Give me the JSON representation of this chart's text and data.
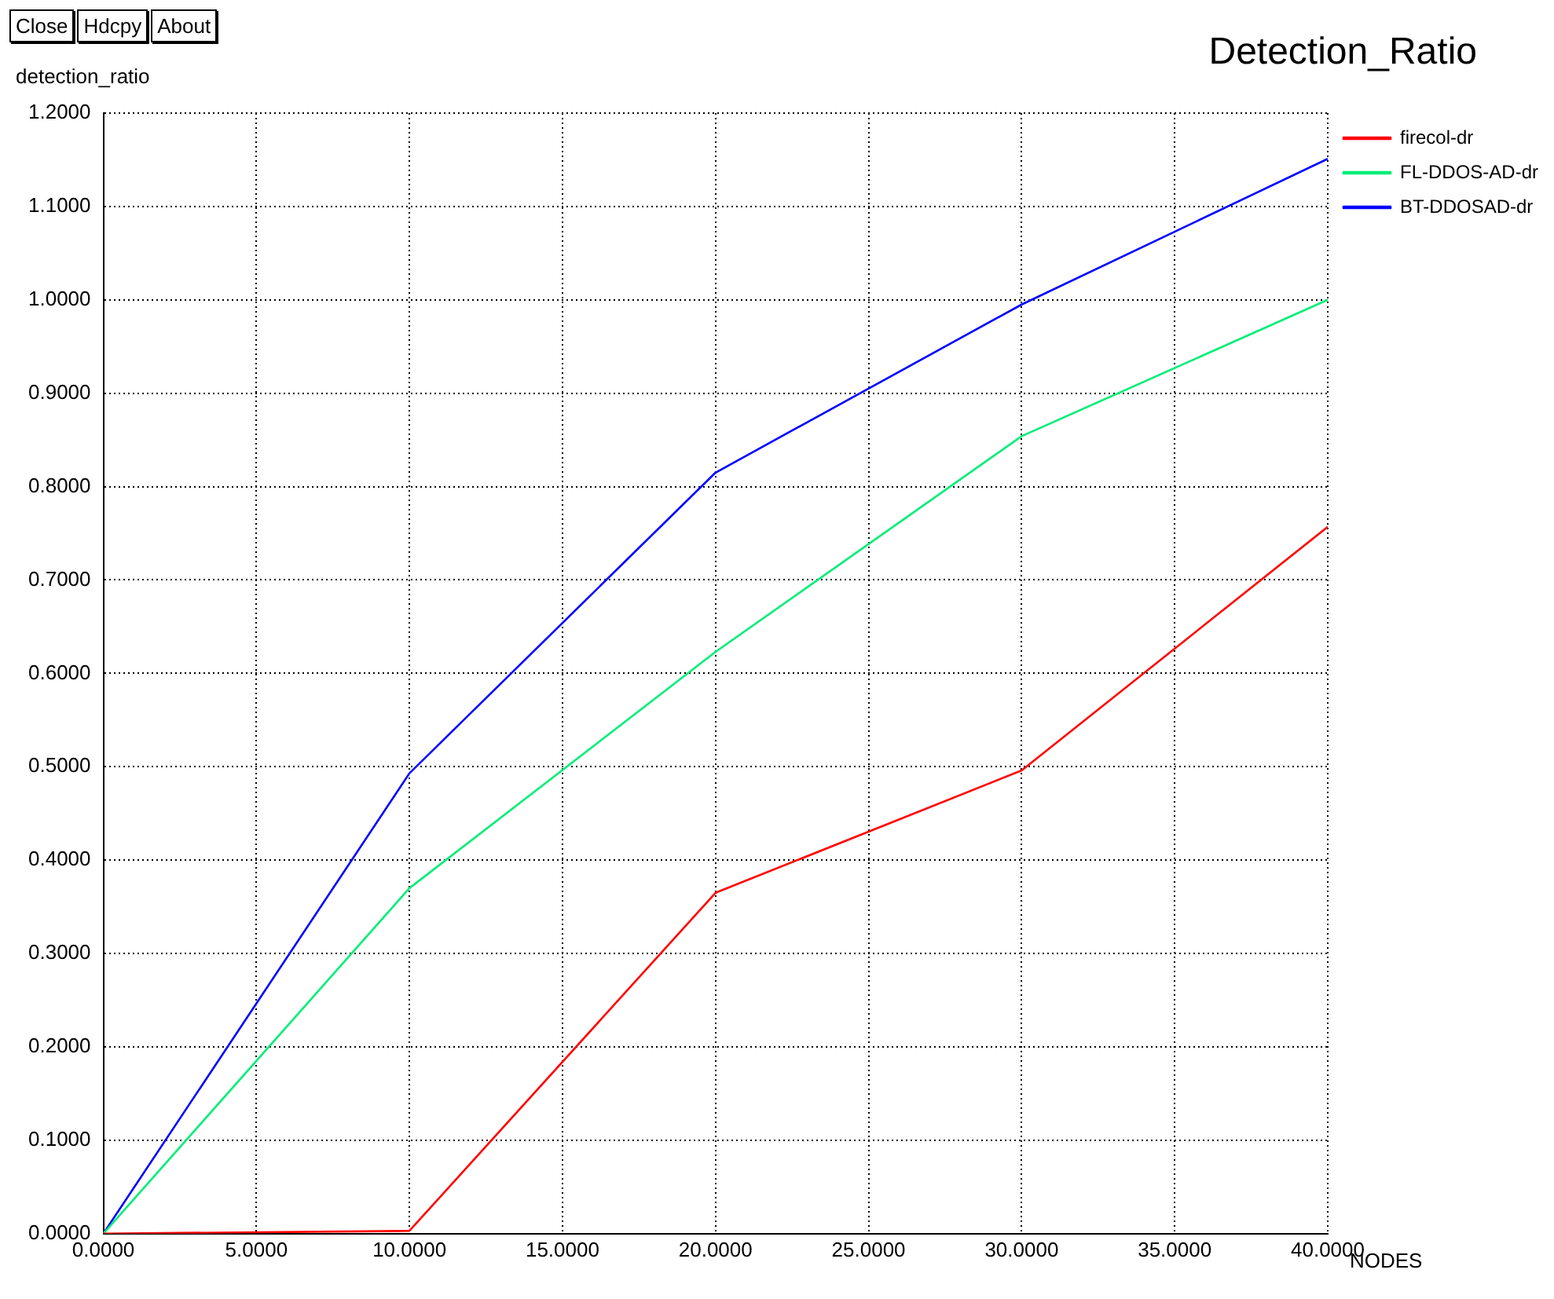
{
  "chart_data": {
    "type": "line",
    "title": "Detection_Ratio",
    "xlabel": "NODES",
    "ylabel": "detection_ratio",
    "annotations": [
      "Close",
      "Hdcpy",
      "About"
    ],
    "x": [
      0,
      10,
      20,
      30,
      40
    ],
    "series": [
      {
        "name": "firecol-dr",
        "color": "#ff0000",
        "values": [
          0,
          0.003,
          0.365,
          0.496,
          0.757
        ]
      },
      {
        "name": "FL-DDOS-AD-dr",
        "color": "#00ee77",
        "values": [
          0,
          0.37,
          0.623,
          0.854,
          1.0
        ]
      },
      {
        "name": "BT-DDOSAD-dr",
        "color": "#0000ff",
        "values": [
          0,
          0.493,
          0.815,
          0.995,
          1.151
        ]
      }
    ],
    "xlim": [
      0,
      40
    ],
    "xticks": [
      {
        "value": 0,
        "label": "0.0000"
      },
      {
        "value": 5,
        "label": "5.0000"
      },
      {
        "value": 10,
        "label": "10.0000"
      },
      {
        "value": 15,
        "label": "15.0000"
      },
      {
        "value": 20,
        "label": "20.0000"
      },
      {
        "value": 25,
        "label": "25.0000"
      },
      {
        "value": 30,
        "label": "30.0000"
      },
      {
        "value": 35,
        "label": "35.0000"
      },
      {
        "value": 40,
        "label": "40.0000"
      }
    ],
    "ylim": [
      0,
      1.2
    ],
    "yticks": [
      {
        "value": 0,
        "label": "0.0000"
      },
      {
        "value": 0.1,
        "label": "0.1000"
      },
      {
        "value": 0.2,
        "label": "0.2000"
      },
      {
        "value": 0.3,
        "label": "0.3000"
      },
      {
        "value": 0.4,
        "label": "0.4000"
      },
      {
        "value": 0.5,
        "label": "0.5000"
      },
      {
        "value": 0.6,
        "label": "0.6000"
      },
      {
        "value": 0.7,
        "label": "0.7000"
      },
      {
        "value": 0.8,
        "label": "0.8000"
      },
      {
        "value": 0.9,
        "label": "0.9000"
      },
      {
        "value": 1.0,
        "label": "1.0000"
      },
      {
        "value": 1.1,
        "label": "1.1000"
      },
      {
        "value": 1.2,
        "label": "1.2000"
      }
    ],
    "grid": true,
    "legend": "top right",
    "marker": "none",
    "line_style": "solid"
  }
}
